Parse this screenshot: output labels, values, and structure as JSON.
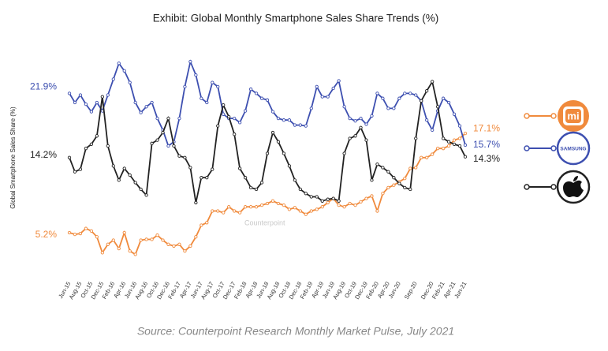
{
  "chart_data": {
    "type": "line",
    "title": "Exhibit: Global Monthly Smartphone Sales Share Trends (%)",
    "y_label": "Global Smartphone Sales Share (%)",
    "watermark": "Counterpoint",
    "source": "Source: Counterpoint Research Monthly Market Pulse, July 2021",
    "ylim": [
      0,
      26
    ],
    "categories": [
      "Jun-15",
      null,
      "Aug-15",
      null,
      "Oct-15",
      null,
      "Dec-15",
      null,
      "Feb-16",
      null,
      "Apr-16",
      null,
      "Jun-16",
      null,
      "Aug-16",
      null,
      "Oct-16",
      null,
      "Dec-16",
      null,
      "Feb-17",
      null,
      "Apr-17",
      null,
      "Jun-17",
      null,
      "Aug-17",
      null,
      "Oct-17",
      null,
      "Dec-17",
      null,
      "Feb-18",
      null,
      "Apr-18",
      null,
      "Jun-18",
      null,
      "Aug-18",
      null,
      "Oct-18",
      null,
      "Dec-18",
      null,
      "Feb-19",
      null,
      "Apr-19",
      null,
      "Jun-19",
      null,
      "Aug-19",
      null,
      "Oct-19",
      null,
      "Dec-19",
      null,
      "Feb-20",
      null,
      "Apr-20",
      null,
      "Jun-20",
      null,
      null,
      "Sep-20",
      null,
      null,
      "Dec-20",
      null,
      "Feb-21",
      null,
      "Apr-21",
      null,
      "Jun-21"
    ],
    "series": [
      {
        "name": "mi",
        "color": "#f08a3c",
        "start_label": "5.2%",
        "end_label": "17.1%",
        "values": [
          5.2,
          5.0,
          5.1,
          5.7,
          5.4,
          4.7,
          2.8,
          3.8,
          4.3,
          3.3,
          5.2,
          3.0,
          2.6,
          4.3,
          4.4,
          4.4,
          4.9,
          4.3,
          3.8,
          3.6,
          3.8,
          3.0,
          3.6,
          4.7,
          6.1,
          6.4,
          7.8,
          7.8,
          7.6,
          8.3,
          7.8,
          7.6,
          8.3,
          8.3,
          8.3,
          8.5,
          8.7,
          9.0,
          8.7,
          8.5,
          8.0,
          8.2,
          7.8,
          7.4,
          7.8,
          8.0,
          8.3,
          8.8,
          9.3,
          8.5,
          8.3,
          8.7,
          8.5,
          8.9,
          9.3,
          9.6,
          7.8,
          9.9,
          10.6,
          10.9,
          11.3,
          11.7,
          12.9,
          13.0,
          14.2,
          14.2,
          14.6,
          15.3,
          15.3,
          15.6,
          16.3,
          16.5,
          17.1
        ]
      },
      {
        "name": "SAMSUNG",
        "color": "#3d4fb0",
        "start_label": "21.9%",
        "end_label": "15.7%",
        "values": [
          21.9,
          20.8,
          21.7,
          20.6,
          19.7,
          20.8,
          19.8,
          21.7,
          23.6,
          25.5,
          24.6,
          23.2,
          20.8,
          19.6,
          20.3,
          20.8,
          18.9,
          17.5,
          15.6,
          16.1,
          18.9,
          22.7,
          25.7,
          24.1,
          21.3,
          20.8,
          23.2,
          22.7,
          19.4,
          18.9,
          18.9,
          18.4,
          19.8,
          22.4,
          21.9,
          21.3,
          21.1,
          19.7,
          18.9,
          18.7,
          18.7,
          18.1,
          18.1,
          18.0,
          20.1,
          22.7,
          21.5,
          21.5,
          22.5,
          23.4,
          20.3,
          18.9,
          18.6,
          18.9,
          18.2,
          19.2,
          21.9,
          21.3,
          20.1,
          20.1,
          21.3,
          21.9,
          21.9,
          21.7,
          21.0,
          18.7,
          17.5,
          19.8,
          21.3,
          20.8,
          19.4,
          18.0,
          15.7
        ]
      },
      {
        "color": "#222222",
        "start_label": "14.2%",
        "end_label": "14.3%",
        "values": [
          14.2,
          12.5,
          12.8,
          15.3,
          15.8,
          16.8,
          21.5,
          15.6,
          13.2,
          11.5,
          12.9,
          12.1,
          11.2,
          10.4,
          9.7,
          15.9,
          16.3,
          17.2,
          18.9,
          15.6,
          14.4,
          14.2,
          13.0,
          8.8,
          11.8,
          11.8,
          12.8,
          18.0,
          20.5,
          19.1,
          17.0,
          12.9,
          11.8,
          10.6,
          10.4,
          11.2,
          14.7,
          17.2,
          16.1,
          14.7,
          13.2,
          11.5,
          10.4,
          9.9,
          9.5,
          9.5,
          9.0,
          9.2,
          9.3,
          9.0,
          14.7,
          16.5,
          16.8,
          17.8,
          16.3,
          11.5,
          13.4,
          13.0,
          12.5,
          11.8,
          11.1,
          10.6,
          10.4,
          16.5,
          21.0,
          22.2,
          23.3,
          20.3,
          16.5,
          16.1,
          15.8,
          15.6,
          14.3
        ]
      }
    ]
  }
}
